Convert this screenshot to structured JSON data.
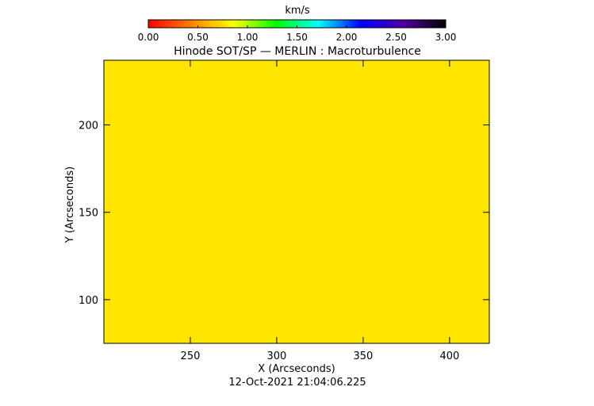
{
  "chart_data": {
    "type": "heatmap",
    "title": "Hinode SOT/SP — MERLIN : Macroturbulence",
    "xlabel": "X (Arcseconds)",
    "ylabel": "Y (Arcseconds)",
    "timestamp": "12-Oct-2021 21:04:06.225",
    "xlim": [
      200,
      423
    ],
    "ylim": [
      75,
      237
    ],
    "x_ticks": [
      {
        "value": 250,
        "label": "250"
      },
      {
        "value": 300,
        "label": "300"
      },
      {
        "value": 350,
        "label": "350"
      },
      {
        "value": 400,
        "label": "400"
      }
    ],
    "y_ticks": [
      {
        "value": 100,
        "label": "100"
      },
      {
        "value": 150,
        "label": "150"
      },
      {
        "value": 200,
        "label": "200"
      }
    ],
    "field_value": 0.9,
    "fill_color": "#ffe600",
    "colorbar": {
      "unit": "km/s",
      "range": [
        0,
        3
      ],
      "colormap": [
        "#ff0000",
        "#ff8000",
        "#ffff00",
        "#00ff00",
        "#00ffff",
        "#0000ff",
        "#5000a0",
        "#000000"
      ],
      "ticks": [
        {
          "value": 0.0,
          "label": "0.00"
        },
        {
          "value": 0.5,
          "label": "0.50"
        },
        {
          "value": 1.0,
          "label": "1.00"
        },
        {
          "value": 1.5,
          "label": "1.50"
        },
        {
          "value": 2.0,
          "label": "2.00"
        },
        {
          "value": 2.5,
          "label": "2.50"
        },
        {
          "value": 3.0,
          "label": "3.00"
        }
      ]
    },
    "grid": false
  }
}
